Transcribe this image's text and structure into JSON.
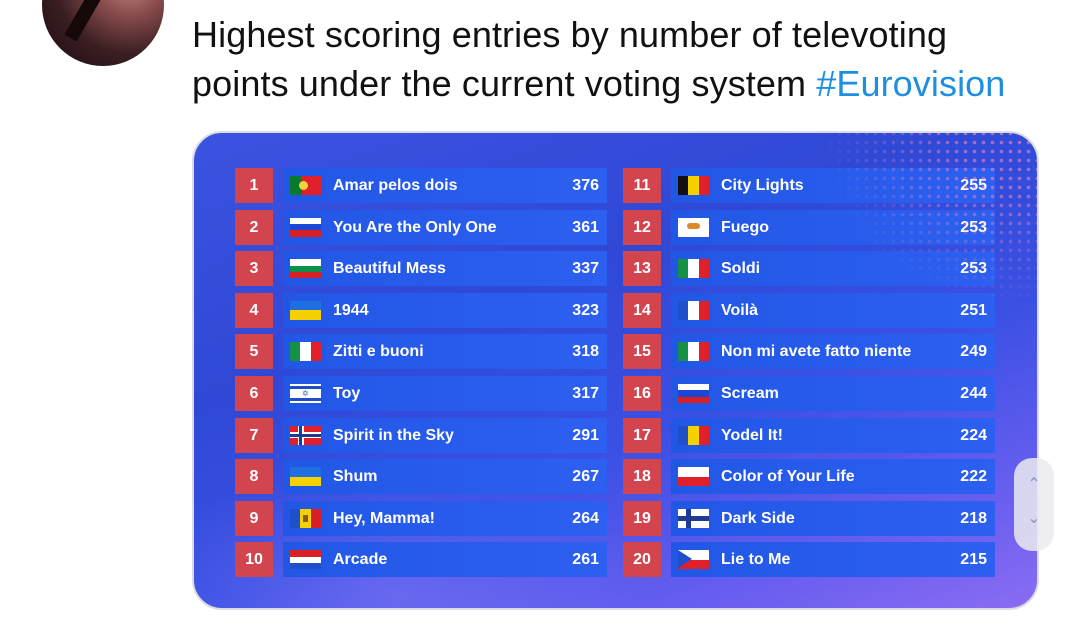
{
  "tweet": {
    "text": "Highest scoring entries by number of televoting points under the current voting system ",
    "hashtag": "#Eurovision"
  },
  "icons": {
    "avatar": "user-avatar",
    "scroll_up": "chevron-up-icon",
    "scroll_down": "chevron-down-icon"
  },
  "colors": {
    "rank_bg": "#d2454f",
    "bar_bg": "#2d5ff0",
    "hashtag": "#1d8fe1"
  },
  "leaderboard": [
    {
      "rank": "1",
      "song": "Amar pelos dois",
      "points": "376",
      "flag": "portugal"
    },
    {
      "rank": "2",
      "song": "You Are the Only One",
      "points": "361",
      "flag": "russia"
    },
    {
      "rank": "3",
      "song": "Beautiful Mess",
      "points": "337",
      "flag": "bulgaria"
    },
    {
      "rank": "4",
      "song": "1944",
      "points": "323",
      "flag": "ukraine"
    },
    {
      "rank": "5",
      "song": "Zitti e buoni",
      "points": "318",
      "flag": "italy"
    },
    {
      "rank": "6",
      "song": "Toy",
      "points": "317",
      "flag": "israel"
    },
    {
      "rank": "7",
      "song": "Spirit in the Sky",
      "points": "291",
      "flag": "norway"
    },
    {
      "rank": "8",
      "song": "Shum",
      "points": "267",
      "flag": "ukraine"
    },
    {
      "rank": "9",
      "song": "Hey, Mamma!",
      "points": "264",
      "flag": "moldova"
    },
    {
      "rank": "10",
      "song": "Arcade",
      "points": "261",
      "flag": "netherlands"
    },
    {
      "rank": "11",
      "song": "City Lights",
      "points": "255",
      "flag": "belgium"
    },
    {
      "rank": "12",
      "song": "Fuego",
      "points": "253",
      "flag": "cyprus"
    },
    {
      "rank": "13",
      "song": "Soldi",
      "points": "253",
      "flag": "italy"
    },
    {
      "rank": "14",
      "song": "Voilà",
      "points": "251",
      "flag": "france"
    },
    {
      "rank": "15",
      "song": "Non mi avete fatto niente",
      "points": "249",
      "flag": "italy"
    },
    {
      "rank": "16",
      "song": "Scream",
      "points": "244",
      "flag": "russia"
    },
    {
      "rank": "17",
      "song": "Yodel It!",
      "points": "224",
      "flag": "romania"
    },
    {
      "rank": "18",
      "song": "Color of Your Life",
      "points": "222",
      "flag": "poland"
    },
    {
      "rank": "19",
      "song": "Dark Side",
      "points": "218",
      "flag": "finland"
    },
    {
      "rank": "20",
      "song": "Lie to Me",
      "points": "215",
      "flag": "czechia"
    }
  ]
}
